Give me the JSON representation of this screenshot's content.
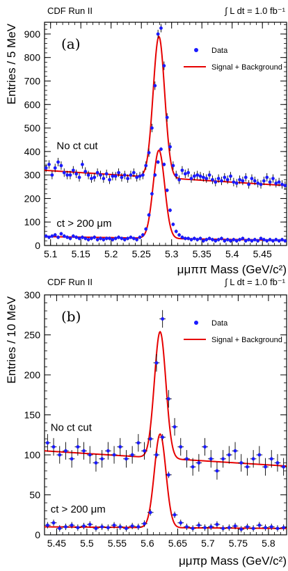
{
  "chart_data": [
    {
      "type": "scatter",
      "panel_label": "(a)",
      "header_left": "CDF Run II",
      "header_right": "∫ L dt = 1.0 fb⁻¹",
      "xlabel": "μμππ Mass (GeV/c²)",
      "ylabel": "Entries / 5 MeV",
      "xlim": [
        5.09,
        5.49
      ],
      "ylim": [
        0,
        950
      ],
      "xticks": [
        5.1,
        5.15,
        5.2,
        5.25,
        5.3,
        5.35,
        5.4,
        5.45
      ],
      "xtick_labels": [
        "5.1",
        "5.15",
        "5.2",
        "5.25",
        "5.3",
        "5.35",
        "5.4",
        "5.45"
      ],
      "yticks": [
        0,
        100,
        200,
        300,
        400,
        500,
        600,
        700,
        800,
        900
      ],
      "ytick_labels": [
        "0",
        "100",
        "200",
        "300",
        "400",
        "500",
        "600",
        "700",
        "800",
        "900"
      ],
      "legend": {
        "position": "top-right",
        "data_label": "Data",
        "fit_label": "Signal + Background"
      },
      "annotations": [
        {
          "text": "No ct cut",
          "x": 5.11,
          "y": 410
        },
        {
          "text": "ct > 200 μm",
          "x": 5.11,
          "y": 80
        }
      ],
      "series": [
        {
          "name": "No ct cut",
          "x": [
            5.0925,
            5.0975,
            5.1025,
            5.1075,
            5.1125,
            5.1175,
            5.1225,
            5.1275,
            5.1325,
            5.1375,
            5.1425,
            5.1475,
            5.1525,
            5.1575,
            5.1625,
            5.1675,
            5.1725,
            5.1775,
            5.1825,
            5.1875,
            5.1925,
            5.1975,
            5.2025,
            5.2075,
            5.2125,
            5.2175,
            5.2225,
            5.2275,
            5.2325,
            5.2375,
            5.2425,
            5.2475,
            5.2525,
            5.2575,
            5.2625,
            5.2675,
            5.2725,
            5.2775,
            5.2825,
            5.2875,
            5.2925,
            5.2975,
            5.3025,
            5.3075,
            5.3125,
            5.3175,
            5.3225,
            5.3275,
            5.3325,
            5.3375,
            5.3425,
            5.3475,
            5.3525,
            5.3575,
            5.3625,
            5.3675,
            5.3725,
            5.3775,
            5.3825,
            5.3875,
            5.3925,
            5.3975,
            5.4025,
            5.4075,
            5.4125,
            5.4175,
            5.4225,
            5.4275,
            5.4325,
            5.4375,
            5.4425,
            5.4475,
            5.4525,
            5.4575,
            5.4625,
            5.4675,
            5.4725,
            5.4775,
            5.4825,
            5.4875
          ],
          "y": [
            330,
            345,
            300,
            330,
            355,
            340,
            310,
            300,
            300,
            320,
            305,
            290,
            345,
            315,
            300,
            285,
            290,
            310,
            300,
            285,
            305,
            280,
            295,
            295,
            310,
            290,
            300,
            285,
            300,
            310,
            290,
            295,
            300,
            340,
            395,
            500,
            680,
            900,
            925,
            765,
            545,
            420,
            340,
            300,
            280,
            320,
            305,
            310,
            285,
            295,
            300,
            295,
            290,
            285,
            300,
            280,
            270,
            285,
            275,
            290,
            280,
            295,
            270,
            265,
            280,
            275,
            290,
            260,
            285,
            275,
            265,
            260,
            275,
            290,
            270,
            285,
            265,
            270,
            260,
            255
          ],
          "yerr": 18
        },
        {
          "name": "ct > 200 μm",
          "x": [
            5.0925,
            5.0975,
            5.1025,
            5.1075,
            5.1125,
            5.1175,
            5.1225,
            5.1275,
            5.1325,
            5.1375,
            5.1425,
            5.1475,
            5.1525,
            5.1575,
            5.1625,
            5.1675,
            5.1725,
            5.1775,
            5.1825,
            5.1875,
            5.1925,
            5.1975,
            5.2025,
            5.2075,
            5.2125,
            5.2175,
            5.2225,
            5.2275,
            5.2325,
            5.2375,
            5.2425,
            5.2475,
            5.2525,
            5.2575,
            5.2625,
            5.2675,
            5.2725,
            5.2775,
            5.2825,
            5.2875,
            5.2925,
            5.2975,
            5.3025,
            5.3075,
            5.3125,
            5.3175,
            5.3225,
            5.3275,
            5.3325,
            5.3375,
            5.3425,
            5.3475,
            5.3525,
            5.3575,
            5.3625,
            5.3675,
            5.3725,
            5.3775,
            5.3825,
            5.3875,
            5.3925,
            5.3975,
            5.4025,
            5.4075,
            5.4125,
            5.4175,
            5.4225,
            5.4275,
            5.4325,
            5.4375,
            5.4425,
            5.4475,
            5.4525,
            5.4575,
            5.4625,
            5.4675,
            5.4725,
            5.4775,
            5.4825,
            5.4875
          ],
          "y": [
            40,
            35,
            40,
            45,
            35,
            50,
            40,
            35,
            30,
            40,
            35,
            30,
            35,
            30,
            25,
            30,
            35,
            25,
            30,
            25,
            30,
            30,
            25,
            30,
            35,
            30,
            25,
            30,
            35,
            30,
            25,
            35,
            45,
            70,
            130,
            220,
            300,
            355,
            410,
            345,
            235,
            150,
            90,
            60,
            45,
            35,
            30,
            30,
            25,
            30,
            25,
            30,
            20,
            25,
            30,
            25,
            20,
            25,
            30,
            20,
            25,
            20,
            25,
            20,
            25,
            30,
            20,
            25,
            20,
            25,
            20,
            30,
            25,
            20,
            25,
            20,
            25,
            20,
            25,
            20
          ],
          "yerr": 8
        }
      ],
      "fit_curves": [
        {
          "background_at": [
            [
              5.09,
              320
            ],
            [
              5.49,
              255
            ]
          ],
          "peak_mean": 5.279,
          "peak_sigma": 0.0095,
          "peak_height": 600
        },
        {
          "background_at": [
            [
              5.09,
              38
            ],
            [
              5.49,
              22
            ]
          ],
          "peak_mean": 5.279,
          "peak_sigma": 0.0095,
          "peak_height": 375
        }
      ],
      "colors": {
        "data": "#1a1aff",
        "fit": "#e60000"
      }
    },
    {
      "type": "scatter",
      "panel_label": "(b)",
      "header_left": "CDF Run II",
      "header_right": "∫ L dt = 1.0 fb⁻¹",
      "xlabel": "μμπp Mass (GeV/c²)",
      "ylabel": "Entries / 10 MeV",
      "xlim": [
        5.43,
        5.83
      ],
      "ylim": [
        0,
        300
      ],
      "xticks": [
        5.45,
        5.5,
        5.55,
        5.6,
        5.65,
        5.7,
        5.75,
        5.8
      ],
      "xtick_labels": [
        "5.45",
        "5.5",
        "5.55",
        "5.6",
        "5.65",
        "5.7",
        "5.75",
        "5.8"
      ],
      "yticks": [
        0,
        50,
        100,
        150,
        200,
        250,
        300
      ],
      "ytick_labels": [
        "0",
        "50",
        "100",
        "150",
        "200",
        "250",
        "300"
      ],
      "legend": {
        "position": "top-right",
        "data_label": "Data",
        "fit_label": "Signal + Background"
      },
      "annotations": [
        {
          "text": "No ct cut",
          "x": 5.44,
          "y": 130
        },
        {
          "text": "ct > 200 μm",
          "x": 5.44,
          "y": 28
        }
      ],
      "series": [
        {
          "name": "No ct cut",
          "x": [
            5.435,
            5.445,
            5.455,
            5.465,
            5.475,
            5.485,
            5.495,
            5.505,
            5.515,
            5.525,
            5.535,
            5.545,
            5.555,
            5.565,
            5.575,
            5.585,
            5.595,
            5.605,
            5.615,
            5.625,
            5.635,
            5.645,
            5.655,
            5.665,
            5.675,
            5.685,
            5.695,
            5.705,
            5.715,
            5.725,
            5.735,
            5.745,
            5.755,
            5.765,
            5.775,
            5.785,
            5.795,
            5.805,
            5.815,
            5.825
          ],
          "y": [
            115,
            110,
            100,
            105,
            95,
            110,
            105,
            100,
            90,
            95,
            105,
            100,
            110,
            95,
            100,
            115,
            105,
            120,
            215,
            270,
            170,
            135,
            110,
            95,
            85,
            90,
            110,
            95,
            80,
            95,
            100,
            105,
            90,
            85,
            95,
            100,
            85,
            95,
            90,
            85
          ],
          "yerr": 11
        },
        {
          "name": "ct > 200 μm",
          "x": [
            5.435,
            5.445,
            5.455,
            5.465,
            5.475,
            5.485,
            5.495,
            5.505,
            5.515,
            5.525,
            5.535,
            5.545,
            5.555,
            5.565,
            5.575,
            5.585,
            5.595,
            5.605,
            5.615,
            5.625,
            5.635,
            5.645,
            5.655,
            5.665,
            5.675,
            5.685,
            5.695,
            5.705,
            5.715,
            5.725,
            5.735,
            5.745,
            5.755,
            5.765,
            5.775,
            5.785,
            5.795,
            5.805,
            5.815,
            5.825
          ],
          "y": [
            12,
            15,
            8,
            10,
            12,
            9,
            11,
            13,
            8,
            10,
            9,
            12,
            10,
            8,
            11,
            10,
            14,
            28,
            100,
            122,
            75,
            25,
            15,
            10,
            8,
            12,
            9,
            10,
            13,
            8,
            9,
            11,
            7,
            10,
            8,
            12,
            9,
            10,
            8,
            9
          ],
          "yerr": 4
        }
      ],
      "fit_curves": [
        {
          "background_at": [
            [
              5.43,
              105
            ],
            [
              5.83,
              86
            ]
          ],
          "peak_mean": 5.621,
          "peak_sigma": 0.0095,
          "peak_height": 158
        },
        {
          "background_at": [
            [
              5.43,
              10
            ],
            [
              5.83,
              8
            ]
          ],
          "peak_mean": 5.621,
          "peak_sigma": 0.0095,
          "peak_height": 117
        }
      ],
      "colors": {
        "data": "#1a1aff",
        "fit": "#e60000"
      }
    }
  ]
}
